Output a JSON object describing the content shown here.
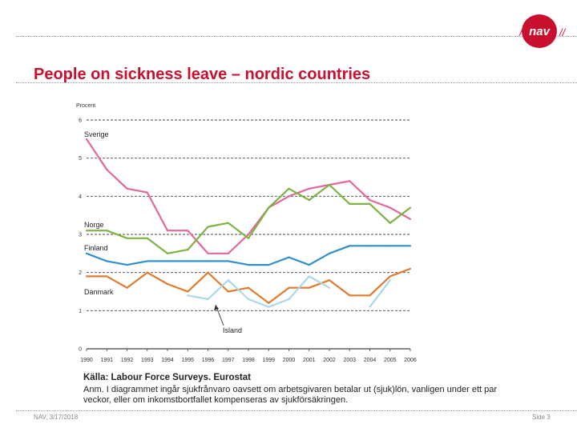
{
  "title": "People on sickness leave – nordic countries",
  "logo": {
    "text": "nav",
    "color": "#c8102e"
  },
  "footer": {
    "left": "NAV, 3/17/2018",
    "right": "Side 3"
  },
  "caption": {
    "source": "Källa: Labour Force Surveys. Eurostat",
    "note": "Anm. I diagrammet ingår sjukfrånvaro oavsett om arbetsgivaren betalar ut (sjuk)lön, vanligen under ett par veckor, eller om inkomstbortfallet kompenseras av sjukförsäkringen."
  },
  "chart_data": {
    "type": "line",
    "ylabel": "Procent",
    "ylim": [
      0,
      6
    ],
    "yticks": [
      0,
      1,
      2,
      3,
      4,
      5,
      6
    ],
    "grid": true,
    "x": [
      1990,
      1991,
      1992,
      1993,
      1994,
      1995,
      1996,
      1997,
      1998,
      1999,
      2000,
      2001,
      2002,
      2003,
      2004,
      2005,
      2006
    ],
    "series": [
      {
        "name": "Sverige",
        "color": "#e3679b",
        "values": [
          5.5,
          4.7,
          4.2,
          4.1,
          3.1,
          3.1,
          2.5,
          2.5,
          3.0,
          3.7,
          4.0,
          4.2,
          4.3,
          4.4,
          3.9,
          3.7,
          3.4
        ]
      },
      {
        "name": "Norge",
        "color": "#7cb342",
        "values": [
          3.1,
          3.1,
          2.9,
          2.9,
          2.5,
          2.6,
          3.2,
          3.3,
          2.9,
          3.7,
          4.2,
          3.9,
          4.3,
          3.8,
          3.8,
          3.3,
          3.7
        ]
      },
      {
        "name": "Finland",
        "color": "#2e8fcc",
        "values": [
          2.5,
          2.3,
          2.2,
          2.3,
          2.3,
          2.3,
          2.3,
          2.3,
          2.2,
          2.2,
          2.4,
          2.2,
          2.5,
          2.7,
          2.7,
          2.7,
          2.7
        ]
      },
      {
        "name": "Danmark",
        "color": "#e07a2e",
        "values": [
          1.9,
          1.9,
          1.6,
          2.0,
          1.7,
          1.5,
          2.0,
          1.5,
          1.6,
          1.2,
          1.6,
          1.6,
          1.8,
          1.4,
          1.4,
          1.9,
          2.1
        ]
      },
      {
        "name": "Island",
        "color": "#a9d8ea",
        "values": [
          null,
          null,
          null,
          null,
          null,
          1.4,
          1.3,
          1.8,
          1.3,
          1.1,
          1.3,
          1.9,
          1.6,
          null,
          1.1,
          1.8,
          null
        ]
      }
    ]
  }
}
